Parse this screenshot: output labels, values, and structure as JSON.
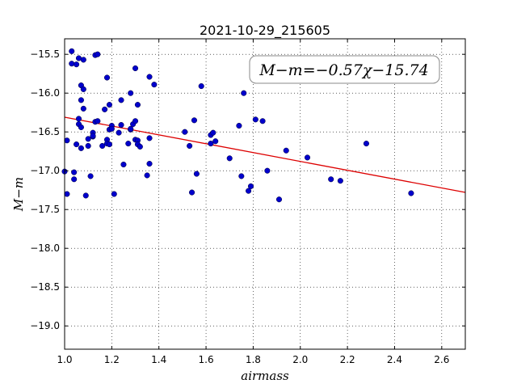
{
  "chart_data": {
    "type": "scatter",
    "title": "2021-10-29_215605",
    "xlabel": "airmass",
    "ylabel": "M−m",
    "xlim": [
      1.0,
      2.7
    ],
    "ylim": [
      -19.3,
      -15.3
    ],
    "y_inverted": true,
    "grid": true,
    "x_ticks": [
      "1.0",
      "1.2",
      "1.4",
      "1.6",
      "1.8",
      "2.0",
      "2.2",
      "2.4",
      "2.6"
    ],
    "y_ticks": [
      "−15.5",
      "−16.0",
      "−16.5",
      "−17.0",
      "−17.5",
      "−18.0",
      "−18.5",
      "−19.0"
    ],
    "annotation": "M−m=−0.57χ−15.74",
    "annotation_position": "top-right",
    "colors": {
      "points": "#0000cc",
      "fit": "#dd0000"
    },
    "fit": {
      "slope": -0.57,
      "intercept": -15.74
    },
    "points": [
      [
        1.0,
        -17.01
      ],
      [
        1.01,
        -17.3
      ],
      [
        1.01,
        -16.61
      ],
      [
        1.03,
        -15.46
      ],
      [
        1.03,
        -15.62
      ],
      [
        1.04,
        -17.11
      ],
      [
        1.04,
        -17.02
      ],
      [
        1.05,
        -15.63
      ],
      [
        1.05,
        -16.66
      ],
      [
        1.06,
        -16.33
      ],
      [
        1.06,
        -16.4
      ],
      [
        1.06,
        -15.55
      ],
      [
        1.07,
        -16.09
      ],
      [
        1.07,
        -16.71
      ],
      [
        1.07,
        -16.44
      ],
      [
        1.07,
        -15.9
      ],
      [
        1.08,
        -15.57
      ],
      [
        1.08,
        -15.95
      ],
      [
        1.08,
        -16.2
      ],
      [
        1.09,
        -17.32
      ],
      [
        1.1,
        -16.59
      ],
      [
        1.1,
        -16.68
      ],
      [
        1.11,
        -17.07
      ],
      [
        1.12,
        -16.51
      ],
      [
        1.12,
        -16.56
      ],
      [
        1.12,
        -16.55
      ],
      [
        1.13,
        -15.51
      ],
      [
        1.13,
        -16.37
      ],
      [
        1.14,
        -16.36
      ],
      [
        1.14,
        -15.5
      ],
      [
        1.16,
        -16.68
      ],
      [
        1.17,
        -16.21
      ],
      [
        1.18,
        -15.8
      ],
      [
        1.18,
        -16.6
      ],
      [
        1.18,
        -16.65
      ],
      [
        1.19,
        -16.15
      ],
      [
        1.19,
        -16.66
      ],
      [
        1.19,
        -16.47
      ],
      [
        1.2,
        -16.42
      ],
      [
        1.2,
        -16.46
      ],
      [
        1.21,
        -17.3
      ],
      [
        1.23,
        -16.51
      ],
      [
        1.24,
        -16.09
      ],
      [
        1.24,
        -16.41
      ],
      [
        1.25,
        -16.92
      ],
      [
        1.27,
        -16.65
      ],
      [
        1.28,
        -16.47
      ],
      [
        1.28,
        -16.46
      ],
      [
        1.28,
        -16.0
      ],
      [
        1.29,
        -16.4
      ],
      [
        1.3,
        -15.68
      ],
      [
        1.3,
        -16.36
      ],
      [
        1.3,
        -16.6
      ],
      [
        1.31,
        -16.15
      ],
      [
        1.31,
        -16.61
      ],
      [
        1.31,
        -16.66
      ],
      [
        1.32,
        -16.69
      ],
      [
        1.35,
        -17.06
      ],
      [
        1.36,
        -16.58
      ],
      [
        1.36,
        -15.79
      ],
      [
        1.36,
        -16.91
      ],
      [
        1.38,
        -15.89
      ],
      [
        1.51,
        -16.5
      ],
      [
        1.53,
        -16.68
      ],
      [
        1.54,
        -17.28
      ],
      [
        1.55,
        -16.35
      ],
      [
        1.56,
        -17.04
      ],
      [
        1.58,
        -15.91
      ],
      [
        1.62,
        -16.54
      ],
      [
        1.62,
        -16.65
      ],
      [
        1.63,
        -16.51
      ],
      [
        1.64,
        -16.62
      ],
      [
        1.7,
        -16.84
      ],
      [
        1.74,
        -16.42
      ],
      [
        1.75,
        -17.07
      ],
      [
        1.76,
        -16.0
      ],
      [
        1.78,
        -17.26
      ],
      [
        1.79,
        -17.2
      ],
      [
        1.81,
        -16.34
      ],
      [
        1.84,
        -16.36
      ],
      [
        1.86,
        -17.0
      ],
      [
        1.91,
        -17.37
      ],
      [
        1.94,
        -16.74
      ],
      [
        2.03,
        -16.83
      ],
      [
        2.13,
        -17.11
      ],
      [
        2.17,
        -17.13
      ],
      [
        2.28,
        -16.65
      ],
      [
        2.47,
        -17.29
      ]
    ]
  }
}
